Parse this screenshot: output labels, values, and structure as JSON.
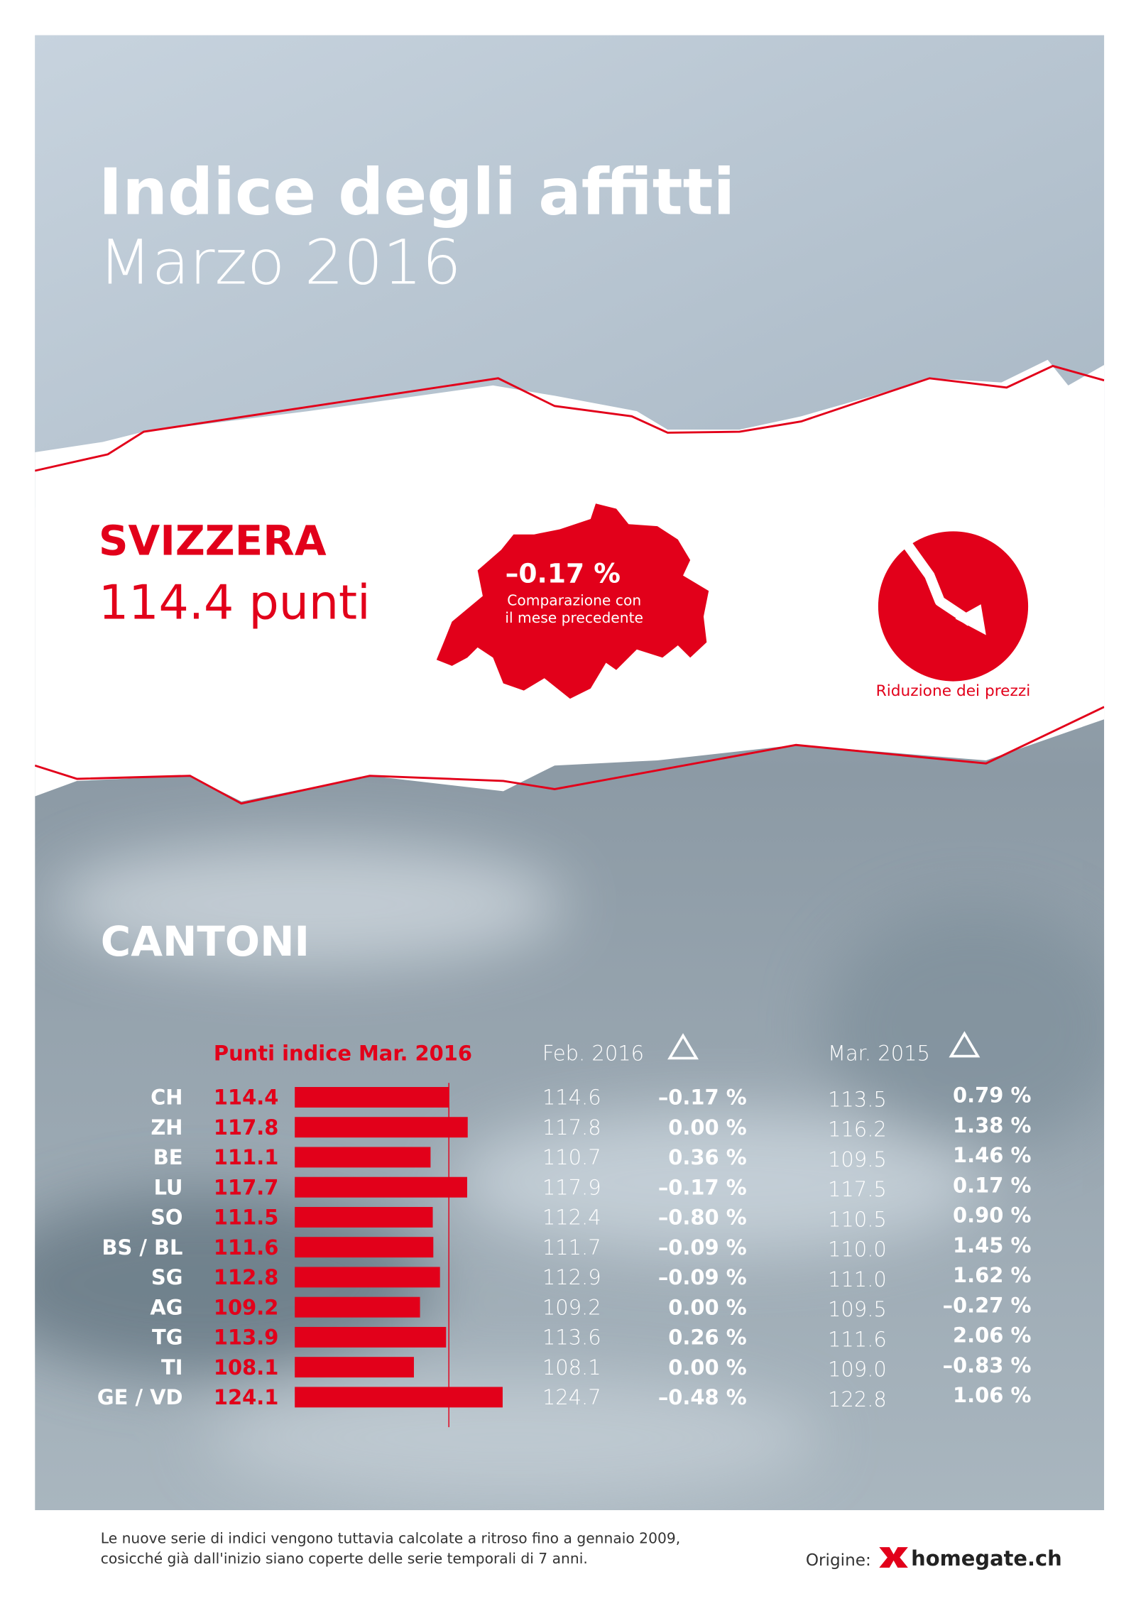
{
  "header": {
    "title": "Indice degli affitti",
    "subtitle": "Marzo 2016"
  },
  "switzerland": {
    "name": "SVIZZERA",
    "value": "114.4 punti",
    "change": "–0.17 %",
    "change_note": [
      "Comparazione con",
      "il mese precedente"
    ],
    "trend_label": "Riduzione dei prezzi"
  },
  "cantons": {
    "title": "CANTONI",
    "index_header": "Punti indice Mar. 2016",
    "prev_month_header": "Feb. 2016",
    "prev_year_header": "Mar. 2015",
    "rows": [
      {
        "name": "CH",
        "index": 114.4,
        "prev_month": "114.6",
        "prev_month_change": "–0.17 %",
        "prev_year": "113.5",
        "prev_year_change": "0.79 %"
      },
      {
        "name": "ZH",
        "index": 117.8,
        "prev_month": "117.8",
        "prev_month_change": "0.00 %",
        "prev_year": "116.2",
        "prev_year_change": "1.38 %"
      },
      {
        "name": "BE",
        "index": 111.1,
        "prev_month": "110.7",
        "prev_month_change": "0.36 %",
        "prev_year": "109.5",
        "prev_year_change": "1.46 %"
      },
      {
        "name": "LU",
        "index": 117.7,
        "prev_month": "117.9",
        "prev_month_change": "–0.17 %",
        "prev_year": "117.5",
        "prev_year_change": "0.17 %"
      },
      {
        "name": "SO",
        "index": 111.5,
        "prev_month": "112.4",
        "prev_month_change": "–0.80 %",
        "prev_year": "110.5",
        "prev_year_change": "0.90 %"
      },
      {
        "name": "BS / BL",
        "index": 111.6,
        "prev_month": "111.7",
        "prev_month_change": "–0.09 %",
        "prev_year": "110.0",
        "prev_year_change": "1.45 %"
      },
      {
        "name": "SG",
        "index": 112.8,
        "prev_month": "112.9",
        "prev_month_change": "–0.09 %",
        "prev_year": "111.0",
        "prev_year_change": "1.62 %"
      },
      {
        "name": "AG",
        "index": 109.2,
        "prev_month": "109.2",
        "prev_month_change": "0.00 %",
        "prev_year": "109.5",
        "prev_year_change": "–0.27 %"
      },
      {
        "name": "TG",
        "index": 113.9,
        "prev_month": "113.6",
        "prev_month_change": "0.26 %",
        "prev_year": "111.6",
        "prev_year_change": "2.06 %"
      },
      {
        "name": "TI",
        "index": 108.1,
        "prev_month": "108.1",
        "prev_month_change": "0.00 %",
        "prev_year": "109.0",
        "prev_year_change": "–0.83 %"
      },
      {
        "name": "GE / VD",
        "index": 124.1,
        "prev_month": "124.7",
        "prev_month_change": "–0.48 %",
        "prev_year": "122.8",
        "prev_year_change": "1.06 %"
      }
    ]
  },
  "footer": {
    "note": [
      "Le nuove serie di indici vengono tuttavia calcolate a ritroso fino a gennaio 2009,",
      "cosicché già dall'inizio siano coperte delle serie temporali di 7 anni."
    ],
    "origin": "Origine:",
    "brand": "homegate.ch"
  }
}
